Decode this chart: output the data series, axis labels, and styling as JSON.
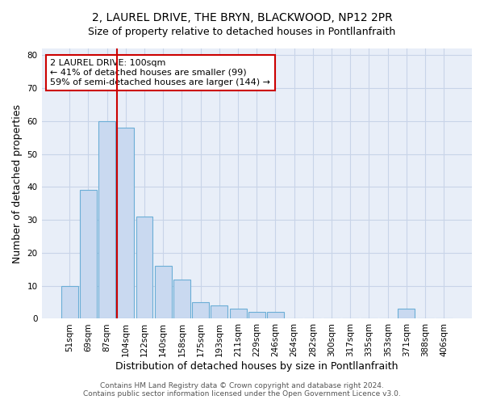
{
  "title1": "2, LAUREL DRIVE, THE BRYN, BLACKWOOD, NP12 2PR",
  "title2": "Size of property relative to detached houses in Pontllanfraith",
  "xlabel": "Distribution of detached houses by size in Pontllanfraith",
  "ylabel": "Number of detached properties",
  "bar_labels": [
    "51sqm",
    "69sqm",
    "87sqm",
    "104sqm",
    "122sqm",
    "140sqm",
    "158sqm",
    "175sqm",
    "193sqm",
    "211sqm",
    "229sqm",
    "246sqm",
    "264sqm",
    "282sqm",
    "300sqm",
    "317sqm",
    "335sqm",
    "353sqm",
    "371sqm",
    "388sqm",
    "406sqm"
  ],
  "bar_values": [
    10,
    39,
    60,
    58,
    31,
    16,
    12,
    5,
    4,
    3,
    2,
    2,
    0,
    0,
    0,
    0,
    0,
    0,
    3,
    0,
    0
  ],
  "bar_color": "#c9d9f0",
  "bar_edge_color": "#6baed6",
  "red_line_color": "#cc0000",
  "ylim": [
    0,
    82
  ],
  "yticks": [
    0,
    10,
    20,
    30,
    40,
    50,
    60,
    70,
    80
  ],
  "annotation_text": "2 LAUREL DRIVE: 100sqm\n← 41% of detached houses are smaller (99)\n59% of semi-detached houses are larger (144) →",
  "annotation_box_color": "#ffffff",
  "annotation_box_edge": "#cc0000",
  "footer1": "Contains HM Land Registry data © Crown copyright and database right 2024.",
  "footer2": "Contains public sector information licensed under the Open Government Licence v3.0.",
  "bg_color": "#e8eef8",
  "grid_color": "#c8d4e8",
  "fig_bg_color": "#ffffff",
  "title1_fontsize": 10,
  "title2_fontsize": 9,
  "tick_fontsize": 7.5,
  "label_fontsize": 9,
  "footer_fontsize": 6.5
}
